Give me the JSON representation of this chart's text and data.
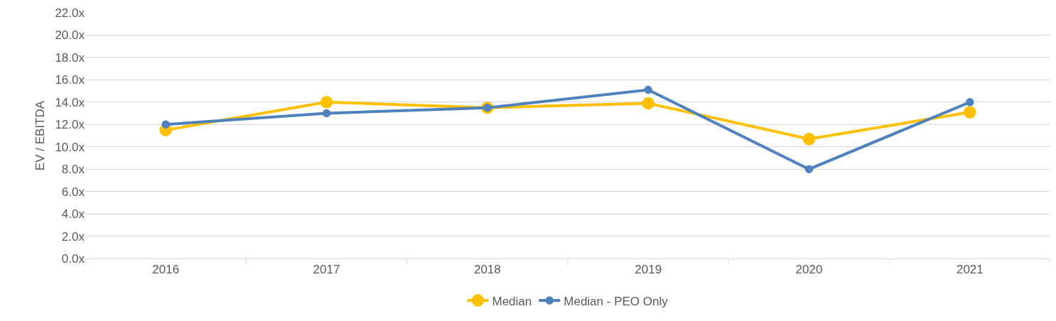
{
  "chart_data": {
    "type": "line",
    "ylabel": "EV / EBITDA",
    "categories": [
      "2016",
      "2017",
      "2018",
      "2019",
      "2020",
      "2021"
    ],
    "series": [
      {
        "name": "Median",
        "color": "#ffc000",
        "values": [
          11.5,
          14.0,
          13.5,
          13.9,
          10.7,
          13.1
        ]
      },
      {
        "name": "Median - PEO Only",
        "color": "#4f81bd",
        "values": [
          12.0,
          13.0,
          13.5,
          15.1,
          8.0,
          14.0
        ]
      }
    ],
    "ylim": [
      0,
      22
    ],
    "yticks": [
      {
        "value": 0,
        "label": "0.0x"
      },
      {
        "value": 2,
        "label": "2.0x"
      },
      {
        "value": 4,
        "label": "4.0x"
      },
      {
        "value": 6,
        "label": "6.0x"
      },
      {
        "value": 8,
        "label": "8.0x"
      },
      {
        "value": 10,
        "label": "10.0x"
      },
      {
        "value": 12,
        "label": "12.0x"
      },
      {
        "value": 14,
        "label": "14.0x"
      },
      {
        "value": 16,
        "label": "16.0x"
      },
      {
        "value": 18,
        "label": "18.0x"
      },
      {
        "value": 20,
        "label": "20.0x"
      },
      {
        "value": 22,
        "label": "22.0x"
      }
    ],
    "grid": "y",
    "legend": "bottom",
    "marker": "circle",
    "line_style": "solid"
  }
}
